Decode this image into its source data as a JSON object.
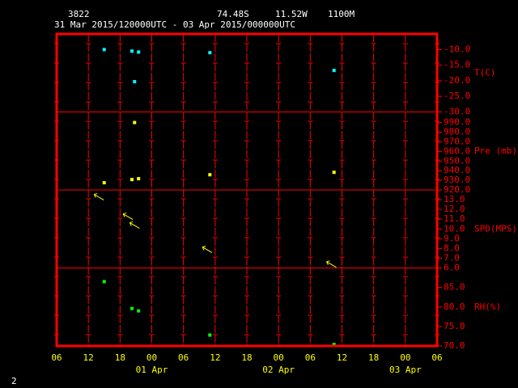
{
  "header": {
    "station": "3822",
    "lat": "74.48S",
    "lon": "11.52W",
    "elev": "1100M",
    "period": "31 Mar 2015/120000UTC - 03 Apr 2015/000000UTC",
    "page": "2"
  },
  "chart_data": [
    {
      "type": "scatter",
      "ylabel": "T(C)",
      "color": "#00ffff",
      "x": [
        9,
        14.25,
        15.5,
        14.75,
        29,
        52.5
      ],
      "values": [
        -10,
        -10.5,
        -10.8,
        -20.3,
        -11,
        -16.7
      ],
      "ylim": [
        -30,
        -5
      ],
      "yticks": [
        {
          "value": -10,
          "label": "-10.0"
        },
        {
          "value": -15,
          "label": "-15.0"
        },
        {
          "value": -20,
          "label": "-20.0"
        },
        {
          "value": -25,
          "label": "-25.0"
        },
        {
          "value": -30,
          "label": "-30.0"
        }
      ]
    },
    {
      "type": "scatter",
      "ylabel": "Pre (mb)",
      "color": "#ffff00",
      "x": [
        9,
        14.75,
        14.25,
        15.5,
        29,
        52.5
      ],
      "values": [
        927.5,
        990,
        930.8,
        931.7,
        935.8,
        938.3
      ],
      "ylim": [
        920,
        1001
      ],
      "yticks": [
        {
          "value": 990,
          "label": "990.0"
        },
        {
          "value": 980,
          "label": "980.0"
        },
        {
          "value": 970,
          "label": "970.0"
        },
        {
          "value": 960,
          "label": "960.0"
        },
        {
          "value": 950,
          "label": "950.0"
        },
        {
          "value": 940,
          "label": "940.0"
        },
        {
          "value": 930,
          "label": "930.0"
        },
        {
          "value": 920,
          "label": "920.0"
        }
      ]
    },
    {
      "type": "arrow",
      "ylabel": "SPD(MPS)",
      "color": "#ffff00",
      "x": [
        8,
        13.5,
        14.75,
        28.5,
        52
      ],
      "values": [
        13.3,
        11.3,
        10.4,
        7.9,
        6.4
      ],
      "ylim": [
        6,
        14
      ],
      "yticks": [
        {
          "value": 13,
          "label": "13.0"
        },
        {
          "value": 12,
          "label": "12.0"
        },
        {
          "value": 11,
          "label": "11.0"
        },
        {
          "value": 10,
          "label": "10.0"
        },
        {
          "value": 9,
          "label": "9.0"
        },
        {
          "value": 8,
          "label": "8.0"
        },
        {
          "value": 7,
          "label": "7.0"
        },
        {
          "value": 6,
          "label": "6.0"
        }
      ]
    },
    {
      "type": "scatter",
      "ylabel": "RH(%)",
      "color": "#00ff00",
      "x": [
        9,
        14.25,
        15.5,
        29,
        52.5
      ],
      "values": [
        86.5,
        79.6,
        79,
        72.8,
        70.4
      ],
      "ylim": [
        70,
        90
      ],
      "yticks": [
        {
          "value": 85,
          "label": "85.0"
        },
        {
          "value": 80,
          "label": "80.0"
        },
        {
          "value": 75,
          "label": "75.0"
        },
        {
          "value": 70,
          "label": "70.0"
        }
      ],
      "xlim": [
        0,
        72
      ],
      "xticks": [
        {
          "value": 0,
          "label": "06"
        },
        {
          "value": 6,
          "label": "12"
        },
        {
          "value": 12,
          "label": "18"
        },
        {
          "value": 18,
          "label": "00"
        },
        {
          "value": 24,
          "label": "06"
        },
        {
          "value": 30,
          "label": "12"
        },
        {
          "value": 36,
          "label": "18"
        },
        {
          "value": 42,
          "label": "00"
        },
        {
          "value": 48,
          "label": "06"
        },
        {
          "value": 54,
          "label": "12"
        },
        {
          "value": 60,
          "label": "18"
        },
        {
          "value": 66,
          "label": "00"
        },
        {
          "value": 72,
          "label": "06"
        }
      ],
      "day_labels": [
        {
          "value": 18,
          "label": "01 Apr"
        },
        {
          "value": 42,
          "label": "02 Apr"
        },
        {
          "value": 66,
          "label": "03 Apr"
        }
      ]
    }
  ]
}
